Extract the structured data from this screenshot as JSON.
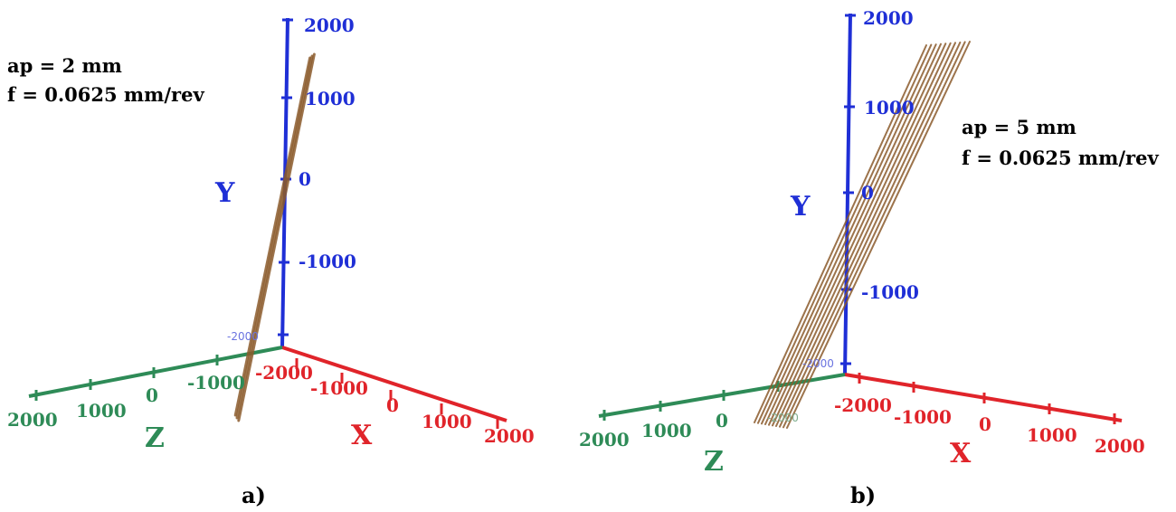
{
  "colors": {
    "y_axis": "#1f2fd6",
    "x_axis": "#e0242a",
    "z_axis": "#2e8b57",
    "trajectory": "#8b5a2b"
  },
  "chart_data": [
    {
      "type": "line",
      "panel_label": "a)",
      "params": [
        "ap = 2 mm",
        "f = 0.0625 mm/rev"
      ],
      "axes": {
        "y": {
          "name": "Y",
          "ticks": [
            "2000",
            "1000",
            "0",
            "-1000",
            "-2000"
          ]
        },
        "x": {
          "name": "X",
          "ticks": [
            "-2000",
            "-1000",
            "0",
            "1000",
            "2000"
          ]
        },
        "z": {
          "name": "Z",
          "ticks": [
            "2000",
            "1000",
            "0",
            "-1000"
          ]
        }
      },
      "trajectory": {
        "strands": 3,
        "spread": 0.06
      }
    },
    {
      "type": "line",
      "panel_label": "b)",
      "params": [
        "ap = 5 mm",
        "f = 0.0625 mm/rev"
      ],
      "axes": {
        "y": {
          "name": "Y",
          "ticks": [
            "2000",
            "1000",
            "0",
            "-1000",
            "-2000"
          ]
        },
        "x": {
          "name": "X",
          "ticks": [
            "-2000",
            "-1000",
            "0",
            "1000",
            "2000"
          ]
        },
        "z": {
          "name": "Z",
          "ticks": [
            "2000",
            "1000",
            "0",
            "-2000"
          ]
        }
      },
      "trajectory": {
        "strands": 10,
        "spread": 0.6
      }
    }
  ]
}
